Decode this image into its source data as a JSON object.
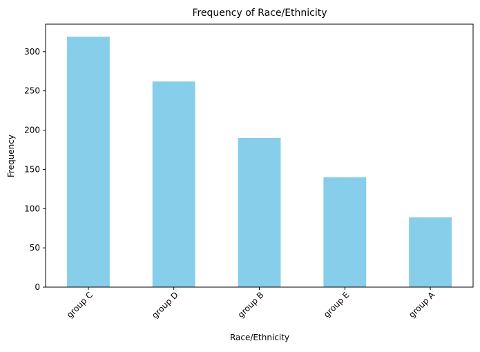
{
  "chart_data": {
    "type": "bar",
    "title": "Frequency of Race/Ethnicity",
    "xlabel": "Race/Ethnicity",
    "ylabel": "Frequency",
    "categories": [
      "group C",
      "group D",
      "group B",
      "group E",
      "group A"
    ],
    "values": [
      319,
      262,
      190,
      140,
      89
    ],
    "ylim": [
      0,
      335
    ],
    "yticks": [
      0,
      50,
      100,
      150,
      200,
      250,
      300
    ],
    "bar_color": "#87CEEB",
    "grid": false,
    "legend": "none"
  }
}
